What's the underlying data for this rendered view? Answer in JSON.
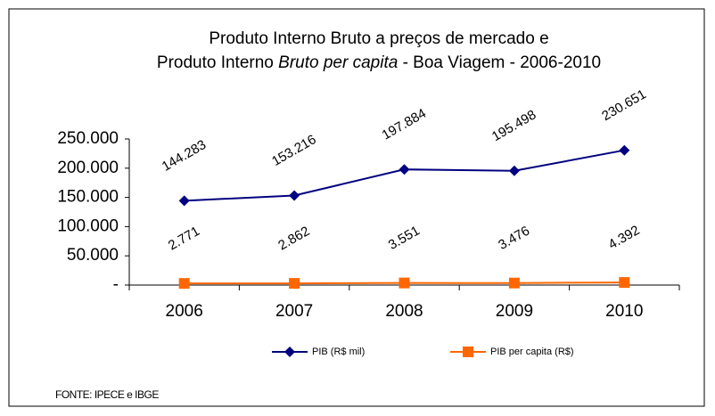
{
  "chart_data": {
    "type": "line",
    "title": {
      "line1": "Produto Interno Bruto a preços de mercado  e",
      "line2": [
        "Produto Interno ",
        "Bruto per capita",
        " - Boa Viagem - 2006-2010"
      ]
    },
    "categories": [
      "2006",
      "2007",
      "2008",
      "2009",
      "2010"
    ],
    "series": [
      {
        "name": "PIB (R$ mil)",
        "color": "#000080",
        "marker": "diamond",
        "values": [
          144283,
          153216,
          197884,
          195498,
          230651
        ],
        "value_labels": [
          "144.283",
          "153.216",
          "197.884",
          "195.498",
          "230.651"
        ]
      },
      {
        "name": "PIB per capita (R$)",
        "color": "#ff6600",
        "marker": "square",
        "values": [
          2771,
          2862,
          3551,
          3476,
          4392
        ],
        "value_labels": [
          "2.771",
          "2.862",
          "3.551",
          "3.476",
          "4.392"
        ]
      }
    ],
    "ylim": [
      0,
      250000
    ],
    "yticks": [
      {
        "value": 0,
        "label": "-"
      },
      {
        "value": 50000,
        "label": "50.000"
      },
      {
        "value": 100000,
        "label": "100.000"
      },
      {
        "value": 150000,
        "label": "150.000"
      },
      {
        "value": 200000,
        "label": "200.000"
      },
      {
        "value": 250000,
        "label": "250.000"
      }
    ],
    "grid": false,
    "legend": "bottom",
    "source": "FONTE: IPECE e IBGE"
  }
}
